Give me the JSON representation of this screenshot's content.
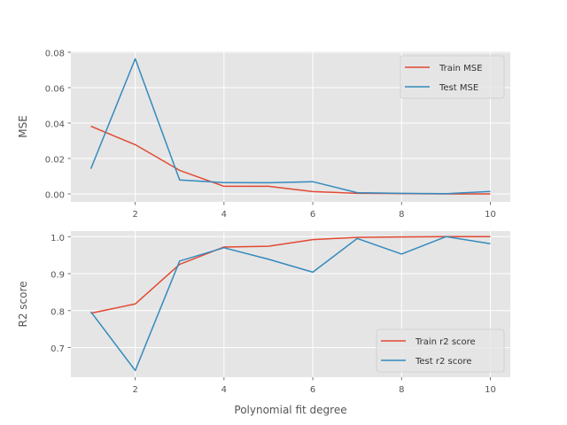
{
  "chart_data": [
    {
      "type": "line",
      "xlabel": "",
      "ylabel": "MSE",
      "xlim": [
        0.55,
        10.45
      ],
      "ylim": [
        -0.0045,
        0.0805
      ],
      "xticks": [
        2,
        4,
        6,
        8,
        10
      ],
      "xtick_labels": [
        "2",
        "4",
        "6",
        "8",
        "10"
      ],
      "yticks": [
        0.0,
        0.02,
        0.04,
        0.06,
        0.08
      ],
      "ytick_labels": [
        "0.00",
        "0.02",
        "0.04",
        "0.06",
        "0.08"
      ],
      "grid": true,
      "legend_position": "top-right",
      "x": [
        1,
        2,
        3,
        4,
        5,
        6,
        7,
        8,
        9,
        10
      ],
      "series": [
        {
          "name": "Train MSE",
          "color": "#E24A33",
          "values": [
            0.0382,
            0.0278,
            0.0133,
            0.0043,
            0.0043,
            0.0013,
            0.0003,
            0.0002,
            0.0,
            0.0
          ]
        },
        {
          "name": "Test MSE",
          "color": "#348ABD",
          "values": [
            0.0142,
            0.0763,
            0.0079,
            0.0064,
            0.0063,
            0.0069,
            0.0007,
            0.0003,
            0.0001,
            0.0014
          ]
        }
      ]
    },
    {
      "type": "line",
      "xlabel": "Polynomial fit degree",
      "ylabel": "R2 score",
      "xlim": [
        0.55,
        10.45
      ],
      "ylim": [
        0.62,
        1.015
      ],
      "xticks": [
        2,
        4,
        6,
        8,
        10
      ],
      "xtick_labels": [
        "2",
        "4",
        "6",
        "8",
        "10"
      ],
      "yticks": [
        0.7,
        0.8,
        0.9,
        1.0
      ],
      "ytick_labels": [
        "0.7",
        "0.8",
        "0.9",
        "1.0"
      ],
      "grid": true,
      "legend_position": "bottom-right",
      "x": [
        1,
        2,
        3,
        4,
        5,
        6,
        7,
        8,
        9,
        10
      ],
      "series": [
        {
          "name": "Train r2 score",
          "color": "#E24A33",
          "values": [
            0.793,
            0.818,
            0.925,
            0.972,
            0.974,
            0.992,
            0.998,
            0.999,
            1.0,
            1.0
          ]
        },
        {
          "name": "Test r2 score",
          "color": "#348ABD",
          "values": [
            0.797,
            0.638,
            0.934,
            0.97,
            0.939,
            0.904,
            0.995,
            0.953,
            1.0,
            0.981
          ]
        }
      ]
    }
  ]
}
